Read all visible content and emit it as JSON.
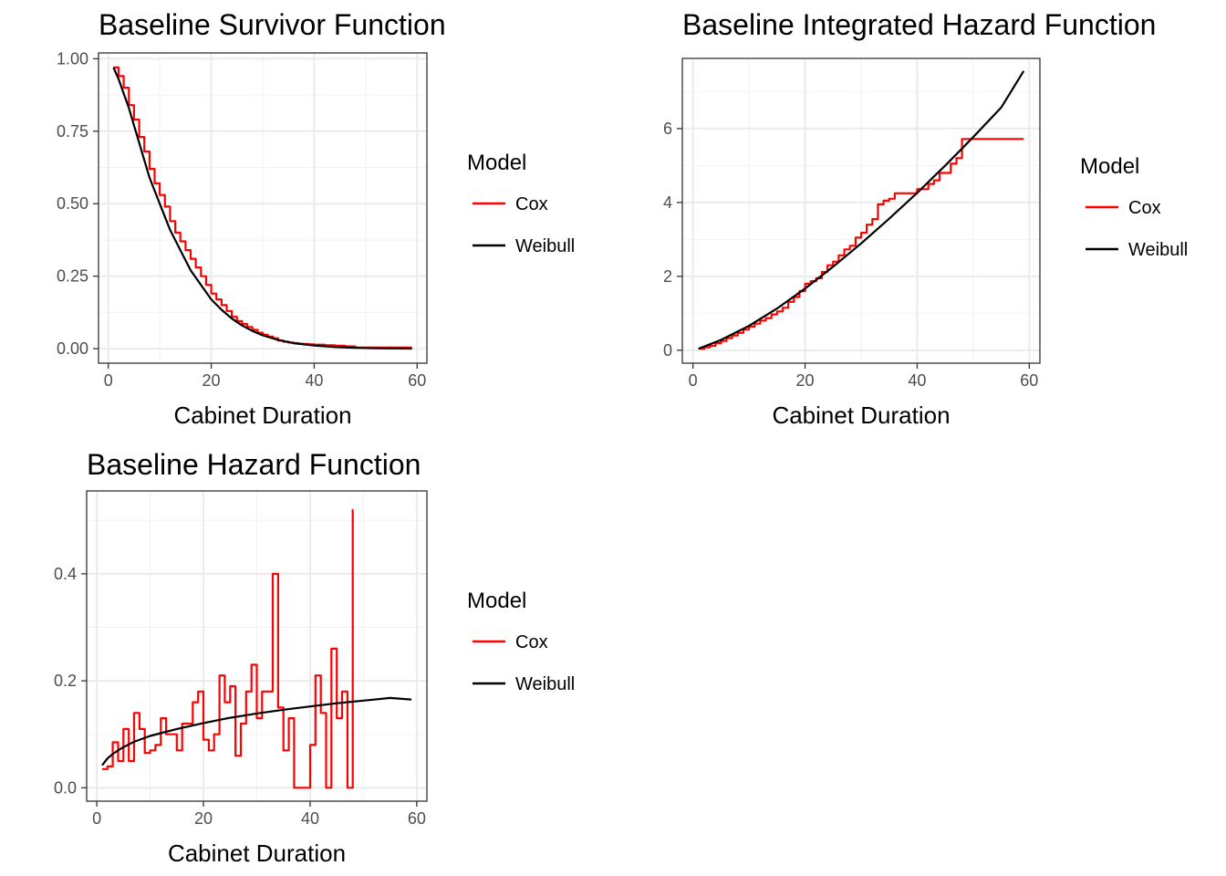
{
  "chart_data": [
    {
      "type": "line",
      "title": "Baseline Survivor Function",
      "xlabel": "Cabinet Duration",
      "ylabel": "",
      "xlim": [
        -1.9,
        61.9
      ],
      "ylim": [
        -0.05,
        1.02
      ],
      "x_ticks": [
        0,
        20,
        40,
        60
      ],
      "x_tick_labels": [
        "0",
        "20",
        "40",
        "60"
      ],
      "y_ticks": [
        0,
        0.25,
        0.5,
        0.75,
        1
      ],
      "y_tick_labels": [
        "0.00",
        "0.25",
        "0.50",
        "0.75",
        "1.00"
      ],
      "grid": true,
      "legend": {
        "title": "Model",
        "position": "right",
        "entries": [
          "Cox",
          "Weibull"
        ]
      },
      "colors": {
        "Cox": "#ff0000",
        "Weibull": "#000000"
      },
      "series": [
        {
          "name": "Cox",
          "step": true,
          "x": [
            1,
            2,
            3,
            4,
            5,
            6,
            7,
            8,
            9,
            10,
            11,
            12,
            13,
            14,
            15,
            16,
            17,
            18,
            19,
            20,
            21,
            22,
            23,
            24,
            25,
            26,
            27,
            28,
            29,
            30,
            31,
            32,
            33,
            34,
            35,
            36,
            37,
            38,
            39,
            40,
            42,
            44,
            46,
            48,
            59
          ],
          "y": [
            0.97,
            0.94,
            0.9,
            0.84,
            0.79,
            0.73,
            0.68,
            0.62,
            0.57,
            0.53,
            0.49,
            0.44,
            0.4,
            0.37,
            0.34,
            0.31,
            0.28,
            0.25,
            0.22,
            0.19,
            0.17,
            0.15,
            0.13,
            0.11,
            0.095,
            0.085,
            0.075,
            0.065,
            0.055,
            0.048,
            0.042,
            0.036,
            0.028,
            0.024,
            0.021,
            0.019,
            0.017,
            0.016,
            0.015,
            0.014,
            0.012,
            0.01,
            0.008,
            0.004,
            0.004
          ]
        },
        {
          "name": "Weibull",
          "x": [
            1,
            2,
            3,
            4,
            5,
            6,
            7,
            8,
            10,
            12,
            14,
            16,
            18,
            20,
            22,
            24,
            26,
            28,
            30,
            33,
            36,
            40,
            44,
            48,
            52,
            56,
            59
          ],
          "y": [
            0.97,
            0.93,
            0.88,
            0.83,
            0.77,
            0.71,
            0.65,
            0.59,
            0.5,
            0.41,
            0.34,
            0.27,
            0.22,
            0.17,
            0.134,
            0.104,
            0.08,
            0.061,
            0.046,
            0.03,
            0.019,
            0.0106,
            0.0056,
            0.0029,
            0.0014,
            0.0007,
            0.0004
          ]
        }
      ]
    },
    {
      "type": "line",
      "title": "Baseline Integrated Hazard Function",
      "xlabel": "Cabinet Duration",
      "ylabel": "",
      "xlim": [
        -1.9,
        61.9
      ],
      "ylim": [
        -0.35,
        7.9
      ],
      "x_ticks": [
        0,
        20,
        40,
        60
      ],
      "x_tick_labels": [
        "0",
        "20",
        "40",
        "60"
      ],
      "y_ticks": [
        0,
        2,
        4,
        6
      ],
      "y_tick_labels": [
        "0",
        "2",
        "4",
        "6"
      ],
      "grid": true,
      "legend": {
        "title": "Model",
        "position": "right",
        "entries": [
          "Cox",
          "Weibull"
        ]
      },
      "colors": {
        "Cox": "#ff0000",
        "Weibull": "#000000"
      },
      "series": [
        {
          "name": "Cox",
          "step": true,
          "x": [
            1,
            2,
            3,
            4,
            5,
            6,
            7,
            8,
            9,
            10,
            11,
            12,
            13,
            14,
            15,
            16,
            17,
            18,
            19,
            20,
            21,
            22,
            23,
            24,
            25,
            26,
            27,
            28,
            29,
            30,
            31,
            32,
            33,
            34,
            35,
            36,
            37,
            38,
            39,
            40,
            41,
            42,
            43,
            44,
            45,
            46,
            47,
            48,
            59
          ],
          "y": [
            0.04,
            0.08,
            0.12,
            0.19,
            0.25,
            0.33,
            0.4,
            0.47,
            0.56,
            0.64,
            0.72,
            0.8,
            0.87,
            0.97,
            1.05,
            1.15,
            1.31,
            1.44,
            1.6,
            1.8,
            1.87,
            1.95,
            2.12,
            2.3,
            2.4,
            2.57,
            2.73,
            2.83,
            3.05,
            3.18,
            3.4,
            3.55,
            3.95,
            4.05,
            4.1,
            4.25,
            4.25,
            4.25,
            4.25,
            4.36,
            4.36,
            4.5,
            4.6,
            4.8,
            4.8,
            5.05,
            5.2,
            5.72,
            5.72
          ]
        },
        {
          "name": "Weibull",
          "x": [
            1,
            5,
            10,
            15,
            20,
            25,
            30,
            35,
            40,
            45,
            48,
            50,
            55,
            59
          ],
          "y": [
            0.04,
            0.28,
            0.66,
            1.13,
            1.67,
            2.26,
            2.89,
            3.56,
            4.26,
            5.0,
            5.46,
            5.77,
            6.57,
            7.56
          ]
        }
      ]
    },
    {
      "type": "line",
      "title": "Baseline Hazard Function",
      "xlabel": "Cabinet Duration",
      "ylabel": "",
      "xlim": [
        -1.9,
        61.9
      ],
      "ylim": [
        -0.025,
        0.555
      ],
      "x_ticks": [
        0,
        20,
        40,
        60
      ],
      "x_tick_labels": [
        "0",
        "20",
        "40",
        "60"
      ],
      "y_ticks": [
        0,
        0.2,
        0.4
      ],
      "y_tick_labels": [
        "0.0",
        "0.2",
        "0.4"
      ],
      "grid": true,
      "legend": {
        "title": "Model",
        "position": "right",
        "entries": [
          "Cox",
          "Weibull"
        ]
      },
      "colors": {
        "Cox": "#ff0000",
        "Weibull": "#000000"
      },
      "series": [
        {
          "name": "Cox",
          "step": true,
          "x": [
            1,
            2,
            3,
            4,
            5,
            6,
            7,
            8,
            9,
            10,
            11,
            12,
            13,
            14,
            15,
            16,
            17,
            18,
            19,
            20,
            21,
            22,
            23,
            24,
            25,
            26,
            27,
            28,
            29,
            30,
            31,
            32,
            33,
            34,
            35,
            36,
            37,
            38,
            39,
            40,
            41,
            42,
            43,
            44,
            45,
            46,
            47,
            48,
            48.01
          ],
          "y": [
            0.035,
            0.04,
            0.085,
            0.05,
            0.11,
            0.05,
            0.14,
            0.11,
            0.065,
            0.07,
            0.08,
            0.13,
            0.1,
            0.1,
            0.07,
            0.12,
            0.12,
            0.16,
            0.18,
            0.09,
            0.07,
            0.1,
            0.21,
            0.16,
            0.19,
            0.06,
            0.12,
            0.18,
            0.23,
            0.13,
            0.18,
            0.18,
            0.4,
            0.15,
            0.07,
            0.13,
            0.0,
            0.0,
            0.0,
            0.08,
            0.21,
            0.14,
            0.0,
            0.26,
            0.13,
            0.18,
            0.0,
            0.52,
            0.52
          ]
        },
        {
          "name": "Weibull",
          "x": [
            1,
            2,
            3,
            4,
            5,
            7,
            10,
            15,
            20,
            25,
            30,
            35,
            40,
            45,
            50,
            55,
            59
          ],
          "y": [
            0.042,
            0.055,
            0.063,
            0.07,
            0.076,
            0.086,
            0.097,
            0.11,
            0.121,
            0.131,
            0.139,
            0.146,
            0.152,
            0.158,
            0.163,
            0.168,
            0.165
          ]
        }
      ]
    }
  ]
}
